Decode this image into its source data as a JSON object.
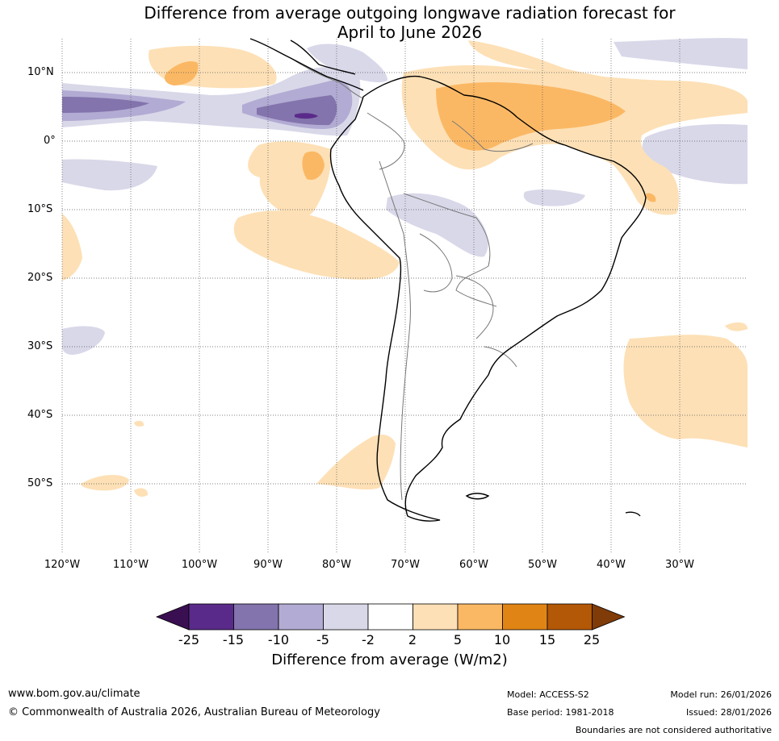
{
  "title_line1": "Difference from average outgoing longwave radiation forecast for",
  "title_line2": "April to June 2026",
  "lat_labels": [
    "10°N",
    "0°",
    "10°S",
    "20°S",
    "30°S",
    "40°S",
    "50°S"
  ],
  "lon_labels": [
    "120°W",
    "110°W",
    "100°W",
    "90°W",
    "80°W",
    "70°W",
    "60°W",
    "50°W",
    "40°W",
    "30°W"
  ],
  "colorbar": {
    "ticks": [
      "-25",
      "-15",
      "-10",
      "-5",
      "-2",
      "2",
      "5",
      "10",
      "15",
      "25"
    ],
    "colors": [
      "#3a0f52",
      "#5a2a8a",
      "#8374ad",
      "#b2abd3",
      "#d8d8e9",
      "#ffffff",
      "#fde0b6",
      "#fbb864",
      "#e08515",
      "#b35806",
      "#7f3b08"
    ],
    "label": "Difference from average (W/m2)"
  },
  "footer": {
    "url": "www.bom.gov.au/climate",
    "copyright": "© Commonwealth of Australia 2026, Australian Bureau of Meteorology",
    "model": "Model: ACCESS-S2",
    "base_period": "Base period: 1981-2018",
    "model_run": "Model run: 26/01/2026",
    "issued": "Issued: 28/01/2026",
    "boundaries_note": "Boundaries are not considered authoritative"
  },
  "map_extent": {
    "lon_min": -120,
    "lon_max": -20,
    "lat_min": -60,
    "lat_max": 15
  }
}
